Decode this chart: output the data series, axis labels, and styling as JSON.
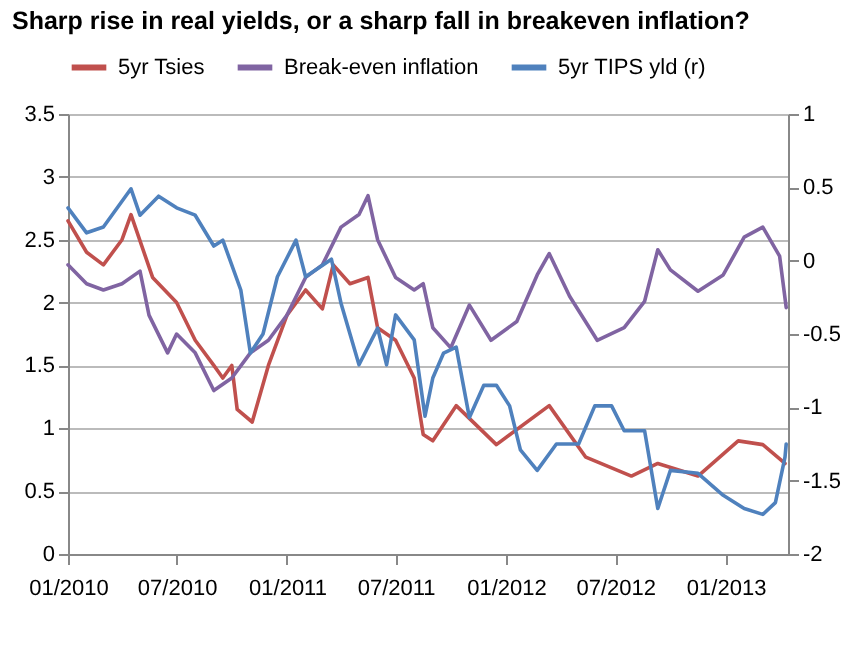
{
  "chart_data": {
    "type": "line",
    "title": "Sharp rise in real yields, or a sharp fall in breakeven inflation?",
    "xlim": [
      "2010-01-01",
      "2013-04-15"
    ],
    "xticks": [
      {
        "value": "2010-01-01",
        "label": "01/2010"
      },
      {
        "value": "2010-07-01",
        "label": "07/2010"
      },
      {
        "value": "2011-01-01",
        "label": "01/2011"
      },
      {
        "value": "2011-07-01",
        "label": "07/2011"
      },
      {
        "value": "2012-01-01",
        "label": "01/2012"
      },
      {
        "value": "2012-07-01",
        "label": "07/2012"
      },
      {
        "value": "2013-01-01",
        "label": "01/2013"
      }
    ],
    "ylim": [
      0,
      3.5
    ],
    "yticks": [
      0,
      0.5,
      1,
      1.5,
      2,
      2.5,
      3,
      3.5
    ],
    "y2lim": [
      -2,
      1
    ],
    "y2ticks": [
      -2,
      -1.5,
      -1,
      -0.5,
      0,
      0.5,
      1
    ],
    "grid": "y",
    "legend": "top",
    "line_style": "solid",
    "marker": "none",
    "series": [
      {
        "name": "5yr Tsies",
        "color": "#c0504d",
        "x": [
          "2010-01-01",
          "2010-02-01",
          "2010-03-01",
          "2010-04-01",
          "2010-04-16",
          "2010-05-22",
          "2010-07-01",
          "2010-08-01",
          "2010-09-01",
          "2010-09-16",
          "2010-10-01",
          "2010-10-10",
          "2010-11-04",
          "2010-12-01",
          "2011-01-01",
          "2011-02-01",
          "2011-03-01",
          "2011-03-19",
          "2011-04-16",
          "2011-05-16",
          "2011-06-01",
          "2011-07-01",
          "2011-08-01",
          "2011-08-16",
          "2011-09-01",
          "2011-10-10",
          "2011-12-16",
          "2012-03-13",
          "2012-05-13",
          "2012-07-28",
          "2012-09-10",
          "2012-11-16",
          "2013-01-22",
          "2013-03-04",
          "2013-04-10"
        ],
        "values": [
          2.65,
          2.4,
          2.3,
          2.5,
          2.7,
          2.2,
          2.0,
          1.7,
          1.5,
          1.4,
          1.5,
          1.15,
          1.05,
          1.5,
          1.9,
          2.1,
          1.95,
          2.3,
          2.15,
          2.2,
          1.8,
          1.7,
          1.4,
          0.95,
          0.9,
          1.18,
          0.87,
          1.18,
          0.77,
          0.62,
          0.72,
          0.62,
          0.9,
          0.87,
          0.72
        ]
      },
      {
        "name": "Break-even inflation",
        "color": "#8064a2",
        "x": [
          "2010-01-01",
          "2010-02-01",
          "2010-03-01",
          "2010-04-01",
          "2010-05-01",
          "2010-05-16",
          "2010-06-16",
          "2010-07-01",
          "2010-08-01",
          "2010-09-01",
          "2010-10-01",
          "2010-11-01",
          "2010-12-01",
          "2011-01-01",
          "2011-02-01",
          "2011-03-01",
          "2011-04-01",
          "2011-05-01",
          "2011-05-16",
          "2011-06-01",
          "2011-07-01",
          "2011-08-01",
          "2011-08-16",
          "2011-09-01",
          "2011-10-01",
          "2011-11-01",
          "2011-12-07",
          "2012-01-19",
          "2012-02-22",
          "2012-03-13",
          "2012-04-16",
          "2012-05-19",
          "2012-06-01",
          "2012-07-16",
          "2012-08-19",
          "2012-09-10",
          "2012-10-01",
          "2012-11-16",
          "2012-12-28",
          "2013-02-01",
          "2013-03-04",
          "2013-04-01",
          "2013-04-12"
        ],
        "values": [
          2.3,
          2.15,
          2.1,
          2.15,
          2.25,
          1.9,
          1.6,
          1.75,
          1.6,
          1.3,
          1.4,
          1.6,
          1.7,
          1.9,
          2.2,
          2.3,
          2.6,
          2.7,
          2.85,
          2.5,
          2.2,
          2.1,
          2.15,
          1.8,
          1.64,
          1.98,
          1.7,
          1.85,
          2.22,
          2.39,
          2.05,
          1.8,
          1.7,
          1.8,
          2.01,
          2.42,
          2.26,
          2.09,
          2.22,
          2.52,
          2.6,
          2.37,
          1.96
        ]
      },
      {
        "name": "5yr TIPS yld (r)",
        "color": "#4f81bd",
        "axis": "y2",
        "x": [
          "2010-01-01",
          "2010-02-01",
          "2010-03-01",
          "2010-04-16",
          "2010-05-01",
          "2010-06-01",
          "2010-07-01",
          "2010-08-01",
          "2010-09-01",
          "2010-09-16",
          "2010-10-16",
          "2010-11-01",
          "2010-11-22",
          "2010-12-16",
          "2011-01-16",
          "2011-02-01",
          "2011-03-16",
          "2011-04-01",
          "2011-05-01",
          "2011-06-01",
          "2011-06-16",
          "2011-07-01",
          "2011-08-01",
          "2011-08-19",
          "2011-09-01",
          "2011-09-19",
          "2011-10-10",
          "2011-11-01",
          "2011-11-25",
          "2011-12-16",
          "2012-01-07",
          "2012-01-25",
          "2012-02-22",
          "2012-03-25",
          "2012-05-01",
          "2012-05-28",
          "2012-06-25",
          "2012-07-16",
          "2012-08-19",
          "2012-09-10",
          "2012-10-01",
          "2012-11-16",
          "2012-12-28",
          "2013-02-01",
          "2013-03-04",
          "2013-03-25",
          "2013-04-10",
          "2013-04-12"
        ],
        "values": [
          0.36,
          0.19,
          0.23,
          0.49,
          0.31,
          0.44,
          0.36,
          0.31,
          0.1,
          0.14,
          -0.2,
          -0.63,
          -0.5,
          -0.11,
          0.14,
          -0.11,
          0.01,
          -0.29,
          -0.71,
          -0.46,
          -0.71,
          -0.37,
          -0.54,
          -1.06,
          -0.8,
          -0.63,
          -0.59,
          -1.07,
          -0.85,
          -0.85,
          -0.99,
          -1.29,
          -1.43,
          -1.25,
          -1.25,
          -0.99,
          -0.99,
          -1.16,
          -1.16,
          -1.69,
          -1.43,
          -1.45,
          -1.6,
          -1.69,
          -1.73,
          -1.65,
          -1.34,
          -1.25
        ]
      }
    ]
  }
}
